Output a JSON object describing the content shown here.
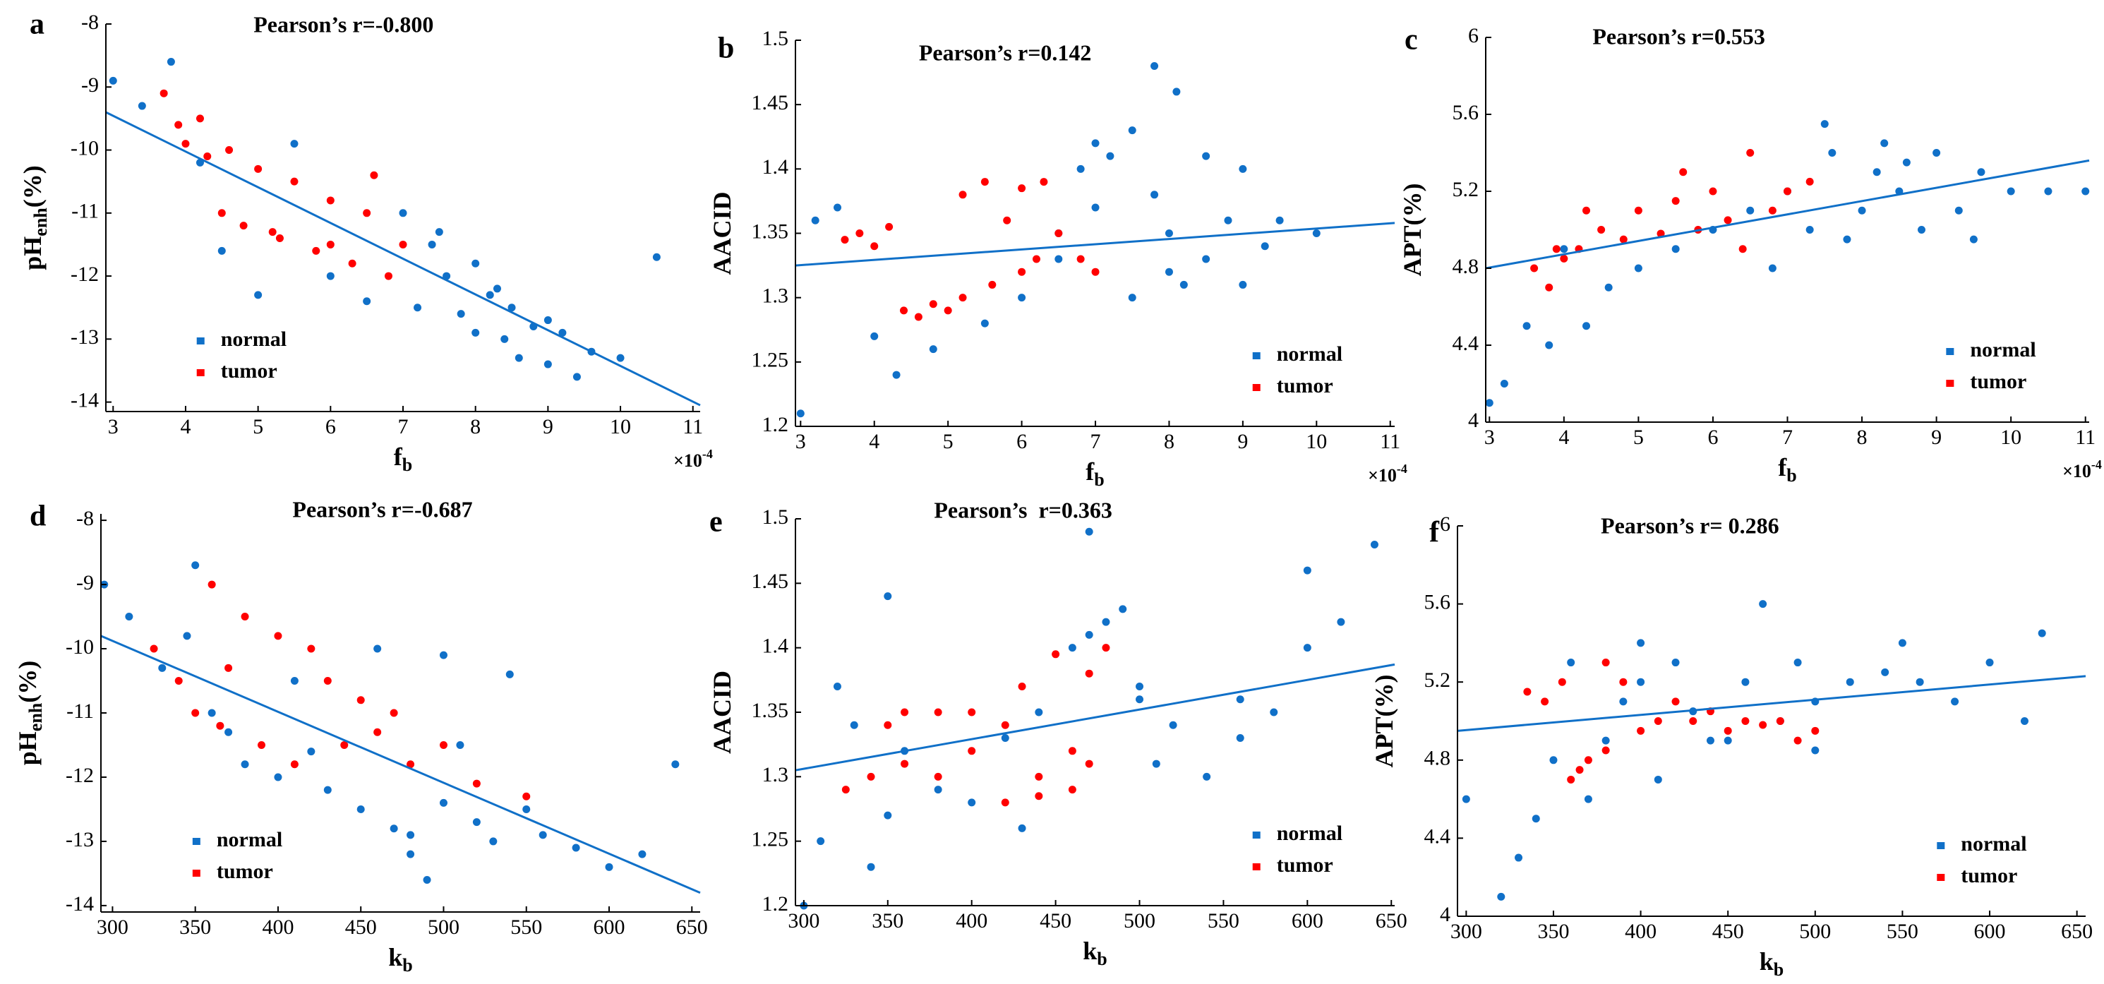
{
  "chart_data": [
    {
      "type": "scatter",
      "panel_label": "a",
      "title": "Pearson’s r=-0.800",
      "xlabel": [
        "f",
        "b"
      ],
      "ylabel": [
        "pH",
        "enh",
        "(%)"
      ],
      "x_multiplier": [
        "×10",
        "-4"
      ],
      "legend": "lower left",
      "xlim": [
        2.9,
        11.1
      ],
      "xticks": [
        3,
        4,
        5,
        6,
        7,
        8,
        9,
        10,
        11
      ],
      "ylim": [
        -14.15,
        -8
      ],
      "yticks": [
        -8,
        -9,
        -10,
        -11,
        -12,
        -13,
        -14
      ],
      "series": [
        {
          "name": "normal",
          "color": "#1070c8",
          "x": [
            3.0,
            3.4,
            3.8,
            4.2,
            4.5,
            5.0,
            5.5,
            6.0,
            6.5,
            7.0,
            7.2,
            7.4,
            7.6,
            7.8,
            8.0,
            8.0,
            8.2,
            8.4,
            8.5,
            8.6,
            8.8,
            9.0,
            9.2,
            9.4,
            9.6,
            10.0,
            10.5,
            7.5,
            8.3,
            9.0
          ],
          "values": [
            -8.9,
            -9.3,
            -8.6,
            -10.2,
            -11.6,
            -12.3,
            -9.9,
            -12.0,
            -12.4,
            -11.0,
            -12.5,
            -11.5,
            -12.0,
            -12.6,
            -11.8,
            -12.9,
            -12.3,
            -13.0,
            -12.5,
            -13.3,
            -12.8,
            -13.4,
            -12.9,
            -13.6,
            -13.2,
            -13.3,
            -11.7,
            -11.3,
            -12.2,
            -12.7
          ]
        },
        {
          "name": "tumor",
          "color": "#ff0000",
          "x": [
            3.7,
            3.9,
            4.0,
            4.2,
            4.3,
            4.5,
            4.8,
            5.0,
            5.3,
            5.5,
            5.8,
            6.0,
            6.3,
            6.5,
            6.8,
            7.0,
            4.6,
            5.2,
            6.0,
            6.6
          ],
          "values": [
            -9.1,
            -9.6,
            -9.9,
            -9.5,
            -10.1,
            -11.0,
            -11.2,
            -10.3,
            -11.4,
            -10.5,
            -11.6,
            -10.8,
            -11.8,
            -11.0,
            -12.0,
            -11.5,
            -10.0,
            -11.3,
            -11.5,
            -10.4
          ]
        }
      ],
      "fit_line": {
        "color": "#1070c8",
        "x": [
          2.9,
          11.1
        ],
        "y": [
          -9.4,
          -14.05
        ]
      }
    },
    {
      "type": "scatter",
      "panel_label": "b",
      "title": "Pearson’s r=0.142",
      "xlabel": [
        "f",
        "b"
      ],
      "ylabel": [
        "AACID"
      ],
      "x_multiplier": [
        "×10",
        "-4"
      ],
      "legend": "lower right",
      "xlim": [
        2.93,
        11.06
      ],
      "xticks": [
        3,
        4,
        5,
        6,
        7,
        8,
        9,
        10,
        11
      ],
      "ylim": [
        1.2,
        1.5
      ],
      "yticks": [
        1.2,
        1.25,
        1.3,
        1.35,
        1.4,
        1.45,
        1.5
      ],
      "series": [
        {
          "name": "normal",
          "color": "#1070c8",
          "x": [
            3.0,
            3.5,
            4.0,
            4.3,
            4.8,
            5.5,
            6.0,
            6.5,
            6.8,
            7.0,
            7.2,
            7.5,
            7.8,
            8.0,
            8.2,
            8.5,
            8.8,
            9.0,
            9.3,
            9.5,
            10.0,
            6.5,
            7.5,
            8.5,
            7.8,
            8.0,
            7.0,
            9.0,
            3.2,
            8.1
          ],
          "values": [
            1.21,
            1.37,
            1.27,
            1.24,
            1.26,
            1.28,
            1.3,
            1.35,
            1.4,
            1.42,
            1.41,
            1.43,
            1.38,
            1.35,
            1.31,
            1.33,
            1.36,
            1.31,
            1.34,
            1.36,
            1.35,
            1.33,
            1.3,
            1.41,
            1.48,
            1.32,
            1.37,
            1.4,
            1.36,
            1.46
          ]
        },
        {
          "name": "tumor",
          "color": "#ff0000",
          "x": [
            3.6,
            3.8,
            4.0,
            4.2,
            4.4,
            4.6,
            5.0,
            5.2,
            5.5,
            5.8,
            6.0,
            6.2,
            6.5,
            5.2,
            5.6,
            6.0,
            6.8,
            7.0,
            4.8,
            6.3
          ],
          "values": [
            1.345,
            1.35,
            1.34,
            1.355,
            1.29,
            1.285,
            1.29,
            1.38,
            1.39,
            1.36,
            1.32,
            1.33,
            1.35,
            1.3,
            1.31,
            1.385,
            1.33,
            1.32,
            1.295,
            1.39
          ]
        }
      ],
      "fit_line": {
        "color": "#1070c8",
        "x": [
          2.93,
          11.06
        ],
        "y": [
          1.325,
          1.358
        ]
      }
    },
    {
      "type": "scatter",
      "panel_label": "c",
      "title": "Pearson’s r=0.553",
      "xlabel": [
        "f",
        "b"
      ],
      "ylabel": [
        "APT(%)"
      ],
      "x_multiplier": [
        "×10",
        "-4"
      ],
      "legend": "lower right",
      "xlim": [
        2.95,
        11.05
      ],
      "xticks": [
        3,
        4,
        5,
        6,
        7,
        8,
        9,
        10,
        11
      ],
      "ylim": [
        4,
        6
      ],
      "yticks": [
        4,
        4.4,
        4.8,
        5.2,
        5.6,
        6
      ],
      "series": [
        {
          "name": "normal",
          "color": "#1070c8",
          "x": [
            3.0,
            3.2,
            3.5,
            3.8,
            4.0,
            4.3,
            4.6,
            5.0,
            5.5,
            6.0,
            6.5,
            7.0,
            7.3,
            7.6,
            8.0,
            8.2,
            8.5,
            8.8,
            9.0,
            9.3,
            9.6,
            10.0,
            10.5,
            11.0,
            7.8,
            8.3,
            6.8,
            7.5,
            8.6,
            9.5
          ],
          "values": [
            4.1,
            4.2,
            4.5,
            4.4,
            4.9,
            4.5,
            4.7,
            4.8,
            4.9,
            5.0,
            5.1,
            5.2,
            5.0,
            5.4,
            5.1,
            5.3,
            5.2,
            5.0,
            5.4,
            5.1,
            5.3,
            5.2,
            5.2,
            5.2,
            4.95,
            5.45,
            4.8,
            5.55,
            5.35,
            4.95
          ]
        },
        {
          "name": "tumor",
          "color": "#ff0000",
          "x": [
            3.6,
            3.8,
            3.9,
            4.0,
            4.2,
            4.5,
            4.8,
            5.0,
            5.3,
            5.5,
            5.8,
            6.0,
            6.2,
            6.5,
            6.8,
            7.0,
            4.3,
            5.6,
            6.4,
            7.3
          ],
          "values": [
            4.8,
            4.7,
            4.9,
            4.85,
            4.9,
            5.0,
            4.95,
            5.1,
            4.98,
            5.15,
            5.0,
            5.2,
            5.05,
            5.4,
            5.1,
            5.2,
            5.1,
            5.3,
            4.9,
            5.25
          ]
        }
      ],
      "fit_line": {
        "color": "#1070c8",
        "x": [
          2.95,
          11.05
        ],
        "y": [
          4.8,
          5.36
        ]
      }
    },
    {
      "type": "scatter",
      "panel_label": "d",
      "title": "Pearson’s r=-0.687",
      "xlabel": [
        "k",
        "b"
      ],
      "ylabel": [
        "pH",
        "enh",
        "(%)"
      ],
      "legend": "lower left",
      "xlim": [
        293,
        655
      ],
      "xticks": [
        300,
        350,
        400,
        450,
        500,
        550,
        600,
        650
      ],
      "ylim": [
        -14.1,
        -7.9
      ],
      "yticks": [
        -8,
        -9,
        -10,
        -11,
        -12,
        -13,
        -14
      ],
      "series": [
        {
          "name": "normal",
          "color": "#1070c8",
          "x": [
            295,
            310,
            330,
            345,
            350,
            360,
            370,
            380,
            400,
            410,
            420,
            430,
            450,
            460,
            470,
            480,
            490,
            500,
            510,
            520,
            530,
            550,
            560,
            580,
            600,
            620,
            640,
            500,
            480,
            540
          ],
          "values": [
            -9.0,
            -9.5,
            -10.3,
            -9.8,
            -8.7,
            -11.0,
            -11.3,
            -11.8,
            -12.0,
            -10.5,
            -11.6,
            -12.2,
            -12.5,
            -10.0,
            -12.8,
            -13.2,
            -13.6,
            -12.4,
            -11.5,
            -12.7,
            -13.0,
            -12.5,
            -12.9,
            -13.1,
            -13.4,
            -13.2,
            -11.8,
            -10.1,
            -12.9,
            -10.4
          ]
        },
        {
          "name": "tumor",
          "color": "#ff0000",
          "x": [
            325,
            340,
            350,
            360,
            370,
            380,
            390,
            400,
            410,
            420,
            430,
            440,
            450,
            460,
            470,
            480,
            500,
            520,
            550,
            365
          ],
          "values": [
            -10.0,
            -10.5,
            -11.0,
            -9.0,
            -10.3,
            -9.5,
            -11.5,
            -9.8,
            -11.8,
            -10.0,
            -10.5,
            -11.5,
            -10.8,
            -11.3,
            -11.0,
            -11.8,
            -11.5,
            -12.1,
            -12.3,
            -11.2
          ]
        }
      ],
      "fit_line": {
        "color": "#1070c8",
        "x": [
          293,
          655
        ],
        "y": [
          -9.8,
          -13.8
        ]
      }
    },
    {
      "type": "scatter",
      "panel_label": "e",
      "title": "Pearson’s  r=0.363",
      "xlabel": [
        "k",
        "b"
      ],
      "ylabel": [
        "AACID"
      ],
      "legend": "lower right",
      "xlim": [
        295,
        652
      ],
      "xticks": [
        300,
        350,
        400,
        450,
        500,
        550,
        600,
        650
      ],
      "ylim": [
        1.2,
        1.5
      ],
      "yticks": [
        1.2,
        1.25,
        1.3,
        1.35,
        1.4,
        1.45,
        1.5
      ],
      "series": [
        {
          "name": "normal",
          "color": "#1070c8",
          "x": [
            300,
            310,
            320,
            330,
            340,
            350,
            360,
            380,
            400,
            420,
            440,
            460,
            470,
            480,
            490,
            500,
            510,
            520,
            540,
            560,
            580,
            600,
            620,
            640,
            470,
            500,
            560,
            600,
            350,
            430
          ],
          "values": [
            1.2,
            1.25,
            1.37,
            1.34,
            1.23,
            1.27,
            1.32,
            1.29,
            1.28,
            1.33,
            1.35,
            1.4,
            1.41,
            1.42,
            1.43,
            1.36,
            1.31,
            1.34,
            1.3,
            1.36,
            1.35,
            1.4,
            1.42,
            1.48,
            1.49,
            1.37,
            1.33,
            1.46,
            1.44,
            1.26
          ]
        },
        {
          "name": "tumor",
          "color": "#ff0000",
          "x": [
            325,
            340,
            350,
            360,
            380,
            400,
            420,
            440,
            460,
            470,
            480,
            360,
            380,
            400,
            420,
            440,
            460,
            430,
            450,
            470
          ],
          "values": [
            1.29,
            1.3,
            1.34,
            1.35,
            1.3,
            1.32,
            1.28,
            1.3,
            1.32,
            1.38,
            1.4,
            1.31,
            1.35,
            1.35,
            1.34,
            1.285,
            1.29,
            1.37,
            1.395,
            1.31
          ]
        }
      ],
      "fit_line": {
        "color": "#1070c8",
        "x": [
          295,
          652
        ],
        "y": [
          1.305,
          1.387
        ]
      }
    },
    {
      "type": "scatter",
      "panel_label": "f",
      "title": "Pearson’s r= 0.286",
      "xlabel": [
        "k",
        "b"
      ],
      "ylabel": [
        "APT(%)"
      ],
      "legend": "lower right",
      "xlim": [
        295,
        655
      ],
      "xticks": [
        300,
        350,
        400,
        450,
        500,
        550,
        600,
        650
      ],
      "ylim": [
        4,
        6
      ],
      "yticks": [
        4,
        4.4,
        4.8,
        5.2,
        5.6,
        6
      ],
      "series": [
        {
          "name": "normal",
          "color": "#1070c8",
          "x": [
            300,
            320,
            330,
            340,
            350,
            360,
            370,
            380,
            390,
            400,
            410,
            420,
            440,
            460,
            470,
            480,
            490,
            500,
            520,
            540,
            560,
            580,
            600,
            620,
            630,
            400,
            450,
            500,
            550,
            430
          ],
          "values": [
            4.6,
            4.1,
            4.3,
            4.5,
            4.8,
            5.3,
            4.6,
            4.9,
            5.1,
            5.2,
            4.7,
            5.3,
            4.9,
            5.2,
            5.6,
            5.0,
            5.3,
            5.1,
            5.2,
            5.25,
            5.2,
            5.1,
            5.3,
            5.0,
            5.45,
            5.4,
            4.9,
            4.85,
            5.4,
            5.05
          ]
        },
        {
          "name": "tumor",
          "color": "#ff0000",
          "x": [
            335,
            345,
            355,
            365,
            370,
            380,
            390,
            400,
            410,
            420,
            430,
            440,
            450,
            460,
            470,
            480,
            490,
            500,
            380,
            360
          ],
          "values": [
            5.15,
            5.1,
            5.2,
            4.75,
            4.8,
            4.85,
            5.2,
            4.95,
            5.0,
            5.1,
            5.0,
            5.05,
            4.95,
            5.0,
            4.98,
            5.0,
            4.9,
            4.95,
            5.3,
            4.7
          ]
        }
      ],
      "fit_line": {
        "color": "#1070c8",
        "x": [
          295,
          655
        ],
        "y": [
          4.95,
          5.23
        ]
      }
    }
  ]
}
